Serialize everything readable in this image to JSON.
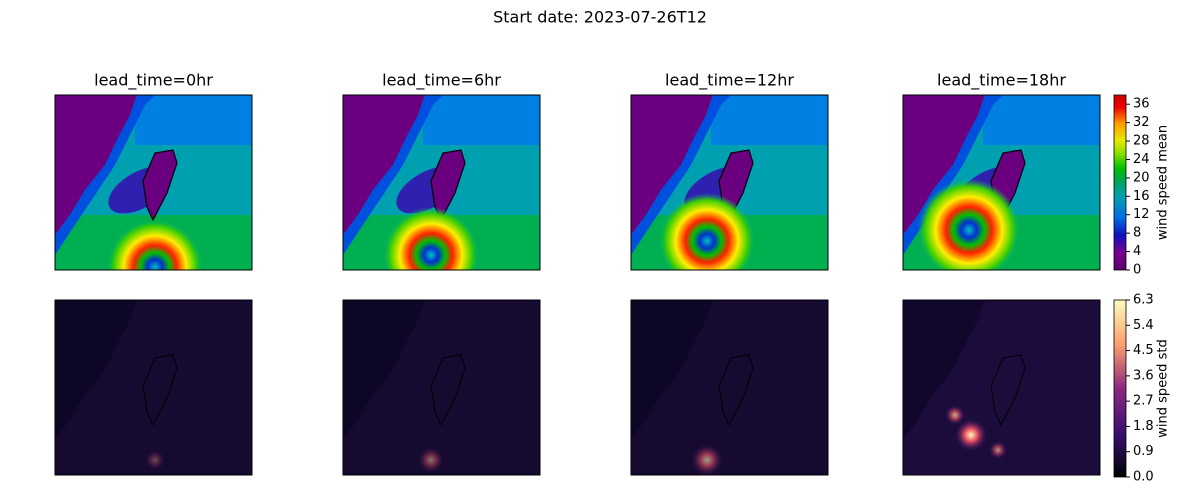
{
  "chart_data": {
    "type": "map-grid",
    "title": "Start date: 2023-07-26T12",
    "panels": [
      {
        "title": "lead_time=0hr"
      },
      {
        "title": "lead_time=6hr"
      },
      {
        "title": "lead_time=12hr"
      },
      {
        "title": "lead_time=18hr"
      }
    ],
    "colorbars": [
      {
        "label": "wind speed mean",
        "ylim": [
          0,
          38
        ],
        "yticks": [
          0,
          4,
          8,
          12,
          16,
          20,
          24,
          28,
          32,
          36
        ]
      },
      {
        "label": "wind speed std",
        "ylim": [
          0,
          6.3
        ],
        "yticks": [
          {
            "value": 0,
            "label": "0.0"
          },
          0.9,
          1.8,
          2.7,
          3.6,
          4.5,
          5.4,
          6.3
        ]
      }
    ]
  }
}
